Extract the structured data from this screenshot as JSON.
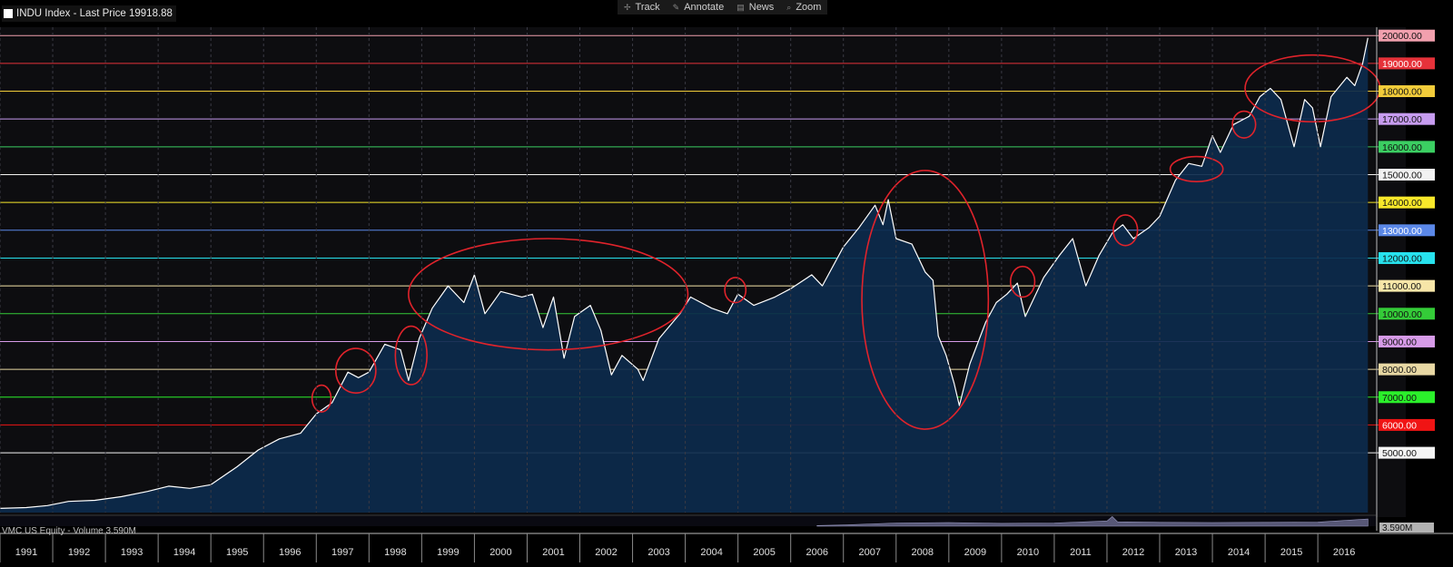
{
  "header": {
    "title": "INDU Index - Last Price 19918.88"
  },
  "toolbar": {
    "items": [
      {
        "label": "Track",
        "icon": "crosshair-icon"
      },
      {
        "label": "Annotate",
        "icon": "pencil-icon"
      },
      {
        "label": "News",
        "icon": "news-icon"
      },
      {
        "label": "Zoom",
        "icon": "magnifier-icon"
      }
    ]
  },
  "volume_panel": {
    "label": "VMC US Equity - Volume 3.590M",
    "value_badge": "3.590M"
  },
  "chart_data": {
    "type": "area",
    "title": "INDU Index - Last Price 19918.88",
    "xlabel": "",
    "ylabel": "",
    "x_range": [
      1991,
      2016.95
    ],
    "ylim": [
      2850,
      20300
    ],
    "grid": false,
    "x_ticks": [
      "1991",
      "1992",
      "1993",
      "1994",
      "1995",
      "1996",
      "1997",
      "1998",
      "1999",
      "2000",
      "2001",
      "2002",
      "2003",
      "2004",
      "2005",
      "2006",
      "2007",
      "2008",
      "2009",
      "2010",
      "2011",
      "2012",
      "2013",
      "2014",
      "2015",
      "2016"
    ],
    "last_price": 19918.88,
    "colors": {
      "background": "#0d0d10",
      "area": "#0c2a4c",
      "line": "#ffffff",
      "annotation": "#e0232b"
    },
    "levels": [
      {
        "value": 20000,
        "label": "20000.00",
        "color": "#f2a0ae"
      },
      {
        "value": 19000,
        "label": "19000.00",
        "color": "#e6323a"
      },
      {
        "value": 18000,
        "label": "18000.00",
        "color": "#f2cc3a"
      },
      {
        "value": 17000,
        "label": "17000.00",
        "color": "#c79cf0"
      },
      {
        "value": 16000,
        "label": "16000.00",
        "color": "#3bcf62"
      },
      {
        "value": 15000,
        "label": "15000.00",
        "color": "#f2f2f2"
      },
      {
        "value": 14000,
        "label": "14000.00",
        "color": "#f8e82a"
      },
      {
        "value": 13000,
        "label": "13000.00",
        "color": "#5b88e8"
      },
      {
        "value": 12000,
        "label": "12000.00",
        "color": "#27e2ee"
      },
      {
        "value": 11000,
        "label": "11000.00",
        "color": "#f7e6a8"
      },
      {
        "value": 10000,
        "label": "10000.00",
        "color": "#34cc38"
      },
      {
        "value": 9000,
        "label": "9000.00",
        "color": "#d79be8"
      },
      {
        "value": 8000,
        "label": "8000.00",
        "color": "#e8d8a4"
      },
      {
        "value": 7000,
        "label": "7000.00",
        "color": "#2bf02b"
      },
      {
        "value": 6000,
        "label": "6000.00",
        "color": "#f01414"
      },
      {
        "value": 5000,
        "label": "5000.00",
        "color": "#f4f4f4"
      }
    ],
    "series": [
      {
        "points": [
          [
            1991.0,
            3000
          ],
          [
            1991.5,
            3030
          ],
          [
            1991.9,
            3100
          ],
          [
            1992.3,
            3250
          ],
          [
            1992.8,
            3290
          ],
          [
            1993.3,
            3420
          ],
          [
            1993.8,
            3610
          ],
          [
            1994.2,
            3800
          ],
          [
            1994.6,
            3720
          ],
          [
            1995.0,
            3850
          ],
          [
            1995.5,
            4500
          ],
          [
            1995.9,
            5100
          ],
          [
            1996.3,
            5500
          ],
          [
            1996.7,
            5700
          ],
          [
            1997.0,
            6400
          ],
          [
            1997.3,
            6800
          ],
          [
            1997.6,
            7900
          ],
          [
            1997.8,
            7700
          ],
          [
            1998.0,
            7900
          ],
          [
            1998.3,
            8900
          ],
          [
            1998.6,
            8700
          ],
          [
            1998.75,
            7600
          ],
          [
            1998.95,
            9100
          ],
          [
            1999.2,
            10200
          ],
          [
            1999.5,
            11000
          ],
          [
            1999.8,
            10400
          ],
          [
            2000.0,
            11400
          ],
          [
            2000.2,
            10000
          ],
          [
            2000.5,
            10800
          ],
          [
            2000.9,
            10600
          ],
          [
            2001.1,
            10700
          ],
          [
            2001.3,
            9500
          ],
          [
            2001.5,
            10600
          ],
          [
            2001.7,
            8400
          ],
          [
            2001.9,
            9900
          ],
          [
            2002.2,
            10300
          ],
          [
            2002.4,
            9400
          ],
          [
            2002.6,
            7800
          ],
          [
            2002.8,
            8500
          ],
          [
            2003.1,
            8000
          ],
          [
            2003.2,
            7600
          ],
          [
            2003.5,
            9100
          ],
          [
            2003.9,
            10000
          ],
          [
            2004.1,
            10600
          ],
          [
            2004.5,
            10200
          ],
          [
            2004.8,
            10000
          ],
          [
            2005.0,
            10700
          ],
          [
            2005.3,
            10300
          ],
          [
            2005.7,
            10600
          ],
          [
            2006.0,
            10900
          ],
          [
            2006.4,
            11400
          ],
          [
            2006.6,
            11000
          ],
          [
            2007.0,
            12400
          ],
          [
            2007.3,
            13100
          ],
          [
            2007.6,
            13900
          ],
          [
            2007.75,
            13200
          ],
          [
            2007.85,
            14100
          ],
          [
            2008.0,
            12700
          ],
          [
            2008.3,
            12500
          ],
          [
            2008.55,
            11500
          ],
          [
            2008.7,
            11200
          ],
          [
            2008.8,
            9200
          ],
          [
            2008.95,
            8500
          ],
          [
            2009.1,
            7500
          ],
          [
            2009.2,
            6700
          ],
          [
            2009.4,
            8200
          ],
          [
            2009.7,
            9700
          ],
          [
            2009.9,
            10400
          ],
          [
            2010.1,
            10700
          ],
          [
            2010.3,
            11100
          ],
          [
            2010.45,
            9900
          ],
          [
            2010.8,
            11300
          ],
          [
            2011.1,
            12100
          ],
          [
            2011.35,
            12700
          ],
          [
            2011.6,
            11000
          ],
          [
            2011.85,
            12100
          ],
          [
            2012.1,
            12900
          ],
          [
            2012.3,
            13200
          ],
          [
            2012.5,
            12700
          ],
          [
            2012.8,
            13100
          ],
          [
            2013.0,
            13500
          ],
          [
            2013.3,
            14800
          ],
          [
            2013.55,
            15400
          ],
          [
            2013.8,
            15300
          ],
          [
            2014.0,
            16400
          ],
          [
            2014.15,
            15800
          ],
          [
            2014.4,
            16800
          ],
          [
            2014.7,
            17100
          ],
          [
            2014.9,
            17800
          ],
          [
            2015.1,
            18100
          ],
          [
            2015.3,
            17700
          ],
          [
            2015.55,
            16000
          ],
          [
            2015.75,
            17700
          ],
          [
            2015.9,
            17400
          ],
          [
            2016.05,
            16000
          ],
          [
            2016.25,
            17800
          ],
          [
            2016.55,
            18500
          ],
          [
            2016.7,
            18200
          ],
          [
            2016.85,
            19000
          ],
          [
            2016.95,
            19918.88
          ]
        ]
      }
    ],
    "volume_points": [
      [
        2006.5,
        0.3
      ],
      [
        2007.0,
        0.6
      ],
      [
        2008.0,
        1.6
      ],
      [
        2009.0,
        1.8
      ],
      [
        2010.0,
        1.4
      ],
      [
        2011.0,
        1.6
      ],
      [
        2012.0,
        2.6
      ],
      [
        2012.1,
        4.8
      ],
      [
        2012.2,
        2.2
      ],
      [
        2013.0,
        1.9
      ],
      [
        2014.0,
        1.8
      ],
      [
        2015.0,
        1.9
      ],
      [
        2016.0,
        2.0
      ],
      [
        2016.95,
        3.59
      ]
    ],
    "annotations": [
      {
        "shape": "ellipse",
        "cx": 1997.1,
        "cy": 6950,
        "rx": 0.18,
        "ry": 480
      },
      {
        "shape": "ellipse",
        "cx": 1997.75,
        "cy": 7950,
        "rx": 0.38,
        "ry": 800
      },
      {
        "shape": "ellipse",
        "cx": 1998.8,
        "cy": 8500,
        "rx": 0.3,
        "ry": 1050
      },
      {
        "shape": "ellipse",
        "cx": 2001.4,
        "cy": 10700,
        "rx": 2.65,
        "ry": 2000
      },
      {
        "shape": "ellipse",
        "cx": 2004.95,
        "cy": 10850,
        "rx": 0.2,
        "ry": 450
      },
      {
        "shape": "ellipse",
        "cx": 2008.55,
        "cy": 10500,
        "rx": 1.2,
        "ry": 4650
      },
      {
        "shape": "ellipse",
        "cx": 2010.4,
        "cy": 11150,
        "rx": 0.23,
        "ry": 550
      },
      {
        "shape": "ellipse",
        "cx": 2012.35,
        "cy": 13000,
        "rx": 0.23,
        "ry": 550
      },
      {
        "shape": "ellipse",
        "cx": 2013.7,
        "cy": 15200,
        "rx": 0.5,
        "ry": 450
      },
      {
        "shape": "ellipse",
        "cx": 2014.6,
        "cy": 16800,
        "rx": 0.22,
        "ry": 480
      },
      {
        "shape": "ellipse",
        "cx": 2015.9,
        "cy": 18100,
        "rx": 1.28,
        "ry": 1200
      }
    ]
  }
}
